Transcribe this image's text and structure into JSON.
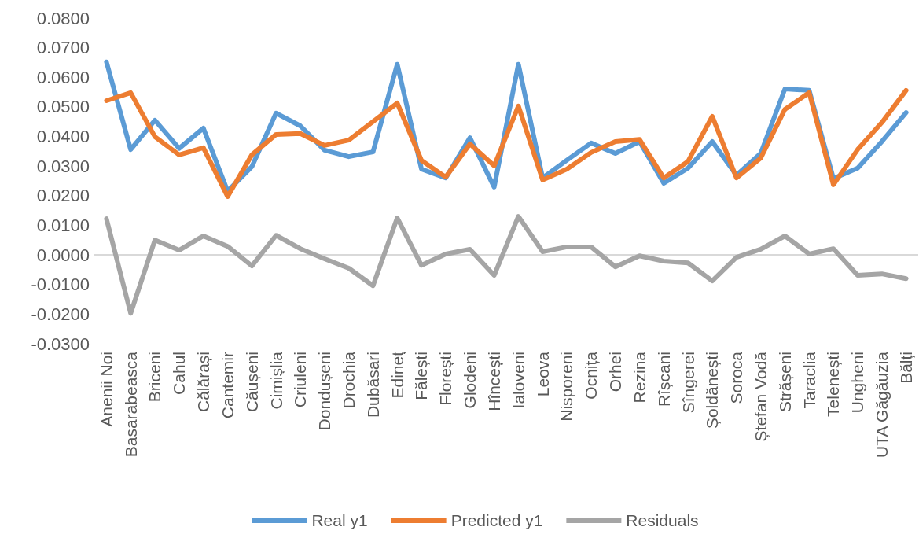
{
  "chart_data": {
    "type": "line",
    "categories": [
      "Anenii Noi",
      "Basarabeasca",
      "Briceni",
      "Cahul",
      "Călărași",
      "Cantemir",
      "Căușeni",
      "Cimișlia",
      "Criuleni",
      "Dondușeni",
      "Drochia",
      "Dubăsari",
      "Edineț",
      "Fălești",
      "Florești",
      "Glodeni",
      "Hîncești",
      "Ialoveni",
      "Leova",
      "Nisporeni",
      "Ocnița",
      "Orhei",
      "Rezina",
      "Rîșcani",
      "Sîngerei",
      "Șoldănești",
      "Soroca",
      "Ștefan Vodă",
      "Strășeni",
      "Taraclia",
      "Telenești",
      "Ungheni",
      "UTA Găgăuzia",
      "Bălți"
    ],
    "series": [
      {
        "name": "Real y1",
        "color": "#5b9bd5",
        "values": [
          0.0652,
          0.0356,
          0.0455,
          0.036,
          0.0428,
          0.0215,
          0.0298,
          0.0479,
          0.0436,
          0.0354,
          0.0332,
          0.0348,
          0.0644,
          0.029,
          0.026,
          0.0396,
          0.0229,
          0.0644,
          0.026,
          0.032,
          0.0378,
          0.0343,
          0.0383,
          0.0242,
          0.0293,
          0.0383,
          0.0269,
          0.0343,
          0.0561,
          0.0556,
          0.0258,
          0.0293,
          0.0383,
          0.0481
        ]
      },
      {
        "name": "Predicted y1",
        "color": "#ed7d31",
        "values": [
          0.0521,
          0.0548,
          0.0399,
          0.0338,
          0.0362,
          0.0197,
          0.0338,
          0.0407,
          0.041,
          0.037,
          0.0388,
          0.045,
          0.0513,
          0.0319,
          0.0263,
          0.0375,
          0.0301,
          0.0503,
          0.0253,
          0.029,
          0.0346,
          0.0383,
          0.039,
          0.026,
          0.0316,
          0.0468,
          0.026,
          0.0327,
          0.0492,
          0.0548,
          0.0237,
          0.0356,
          0.0447,
          0.0556
        ]
      },
      {
        "name": "Residuals",
        "color": "#a5a5a5",
        "values": [
          0.0122,
          -0.0197,
          0.005,
          0.0016,
          0.0064,
          0.0029,
          -0.0037,
          0.0066,
          0.0021,
          -0.0013,
          -0.0045,
          -0.0104,
          0.0125,
          -0.0035,
          0.0003,
          0.0019,
          -0.0069,
          0.013,
          0.0011,
          0.0027,
          0.0027,
          -0.004,
          -0.0003,
          -0.0021,
          -0.0027,
          -0.0088,
          -0.0008,
          0.0019,
          0.0064,
          0.0003,
          0.0021,
          -0.0069,
          -0.0064,
          -0.008
        ]
      }
    ],
    "ylim": [
      -0.03,
      0.08
    ],
    "yticks": [
      {
        "value": -0.03,
        "label": "-0.0300"
      },
      {
        "value": -0.02,
        "label": "-0.0200"
      },
      {
        "value": -0.01,
        "label": "-0.0100"
      },
      {
        "value": 0,
        "label": "0.0000"
      },
      {
        "value": 0.01,
        "label": "0.0100"
      },
      {
        "value": 0.02,
        "label": "0.0200"
      },
      {
        "value": 0.03,
        "label": "0.0300"
      },
      {
        "value": 0.04,
        "label": "0.0400"
      },
      {
        "value": 0.05,
        "label": "0.0500"
      },
      {
        "value": 0.06,
        "label": "0.0600"
      },
      {
        "value": 0.07,
        "label": "0.0700"
      },
      {
        "value": 0.08,
        "label": "0.0800"
      }
    ],
    "ref_lines": [
      {
        "axis": "y",
        "value": 0,
        "color": "#d9d9d9"
      }
    ],
    "legend": "bottom",
    "marker": "none",
    "line_style": "solid"
  }
}
